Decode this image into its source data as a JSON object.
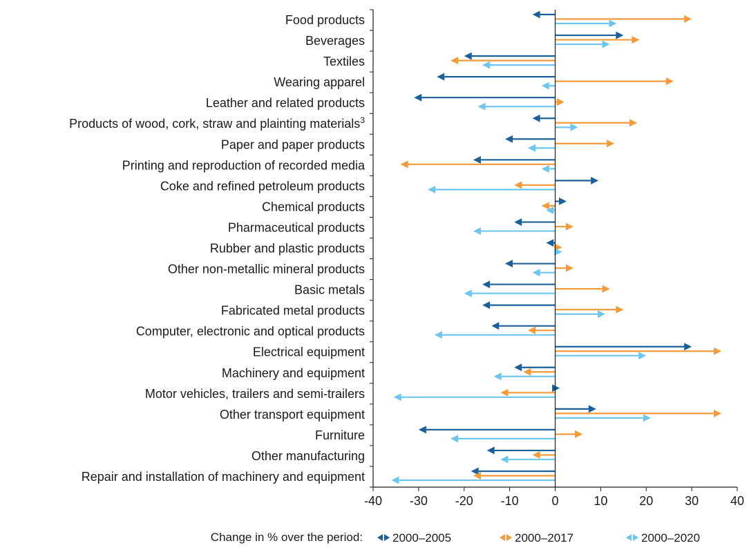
{
  "chart_data": {
    "type": "bar",
    "orientation": "horizontal-arrows",
    "categories": [
      "Food products",
      "Beverages",
      "Textiles",
      "Wearing apparel",
      "Leather and related products",
      "Products of wood, cork, straw and plainting materials",
      "Paper and paper products",
      "Printing and reproduction of recorded media",
      "Coke and refined petroleum products",
      "Chemical products",
      "Pharmaceutical products",
      "Rubber and plastic products",
      "Other non-metallic mineral products",
      "Basic metals",
      "Fabricated metal products",
      "Computer, electronic and optical products",
      "Electrical equipment",
      "Machinery and equipment",
      "Motor vehicles, trailers and semi-trailers",
      "Other transport equipment",
      "Furniture",
      "Other manufacturing",
      "Repair and installation of machinery and equipment"
    ],
    "category_superscripts": {
      "5": "3"
    },
    "series": [
      {
        "name": "2000–2005",
        "color": "#1a5f99",
        "values": [
          -5,
          15,
          -20,
          -26,
          -31,
          -5,
          -11,
          -18,
          9.5,
          2.5,
          -9,
          -2,
          -11,
          -16,
          -16,
          -14,
          30,
          -9,
          1,
          9,
          -30,
          -15,
          -18.5
        ]
      },
      {
        "name": "2000–2017",
        "color": "#f39a3a",
        "values": [
          30,
          18.5,
          -23,
          26,
          2,
          18,
          13,
          -34,
          -9,
          -3,
          4,
          1.5,
          4,
          12,
          15,
          -6,
          36.5,
          -7,
          -12,
          36.5,
          6,
          -5,
          -18
        ]
      },
      {
        "name": "2000–2020",
        "color": "#6cc6ef",
        "values": [
          13.5,
          12,
          -16,
          -3,
          -17,
          5,
          -6,
          -3,
          -28,
          -2,
          -18,
          1.5,
          -5,
          -20,
          11,
          -26.5,
          20,
          -13.5,
          -35.5,
          21,
          -23,
          -12,
          -36
        ]
      }
    ],
    "x_ticks": [
      -40,
      -30,
      -20,
      -10,
      0,
      10,
      20,
      30,
      40
    ],
    "xlim": [
      -40,
      40
    ],
    "legend_title": "Change in % over the period:",
    "legend_position": "bottom"
  }
}
